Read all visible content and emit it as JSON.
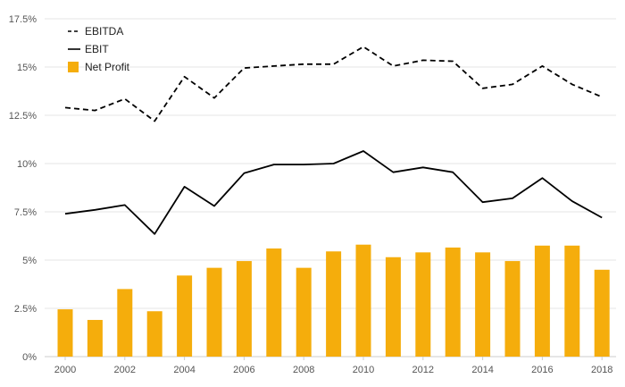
{
  "chart_data": {
    "type": "bar",
    "title": "",
    "xlabel": "",
    "ylabel": "",
    "categories": [
      "2000",
      "2001",
      "2002",
      "2003",
      "2004",
      "2005",
      "2006",
      "2007",
      "2008",
      "2009",
      "2010",
      "2011",
      "2012",
      "2013",
      "2014",
      "2015",
      "2016",
      "2017",
      "2018"
    ],
    "x_tick_labels": [
      "2000",
      "2002",
      "2004",
      "2006",
      "2008",
      "2010",
      "2012",
      "2014",
      "2016",
      "2018"
    ],
    "y_ticks": [
      0,
      2.5,
      5,
      7.5,
      10,
      12.5,
      15,
      17.5
    ],
    "y_tick_labels": [
      "0%",
      "2.5%",
      "5%",
      "7.5%",
      "10%",
      "12.5%",
      "15%",
      "17.5%"
    ],
    "ylim": [
      0,
      17.5
    ],
    "grid": true,
    "legend_position": "top-left",
    "series": [
      {
        "name": "EBITDA",
        "kind": "line",
        "style": "dashed",
        "color": "#000000",
        "values": [
          12.9,
          12.75,
          13.35,
          12.2,
          14.5,
          13.4,
          14.95,
          15.05,
          15.15,
          15.15,
          16.05,
          15.05,
          15.35,
          15.3,
          13.9,
          14.1,
          15.05,
          14.1,
          13.45
        ]
      },
      {
        "name": "EBIT",
        "kind": "line",
        "style": "solid",
        "color": "#000000",
        "values": [
          7.4,
          7.6,
          7.85,
          6.35,
          8.8,
          7.8,
          9.5,
          9.95,
          9.95,
          10.0,
          10.65,
          9.55,
          9.8,
          9.55,
          8.0,
          8.2,
          9.25,
          8.05,
          7.2
        ]
      },
      {
        "name": "Net Profit",
        "kind": "bar",
        "color": "#f5ad0c",
        "values": [
          2.45,
          1.9,
          3.5,
          2.35,
          4.2,
          4.6,
          4.95,
          5.6,
          4.6,
          5.45,
          5.8,
          5.15,
          5.4,
          5.65,
          5.4,
          4.95,
          5.75,
          5.75,
          4.5
        ]
      }
    ]
  }
}
